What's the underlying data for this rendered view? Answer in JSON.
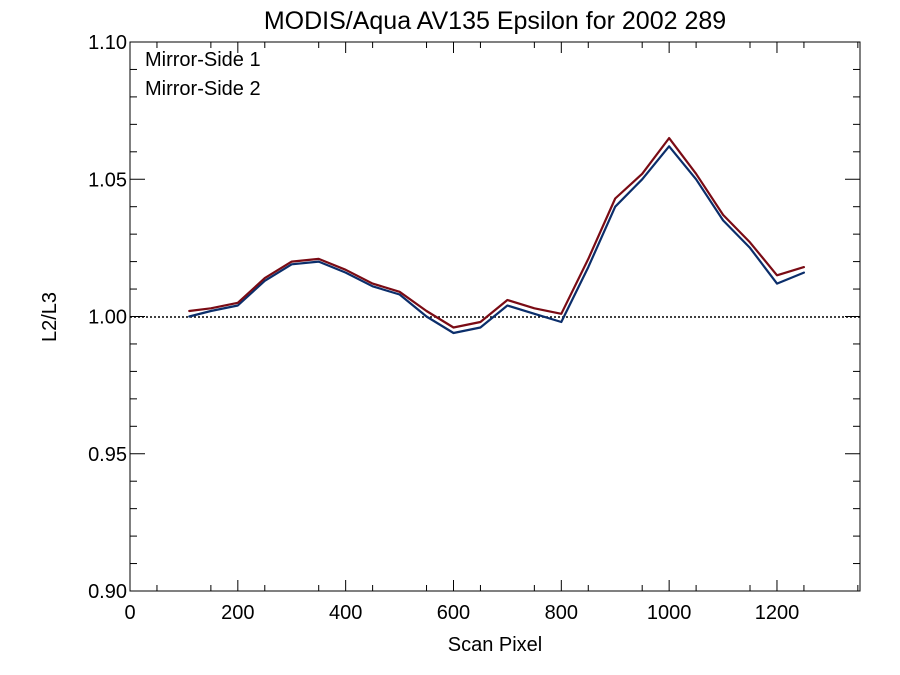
{
  "chart_data": {
    "type": "line",
    "title": "MODIS/Aqua AV135 Epsilon for 2002 289",
    "xlabel": "Scan Pixel",
    "ylabel": "L2/L3",
    "xlim": [
      0,
      1354
    ],
    "ylim": [
      0.9,
      1.1
    ],
    "x_ticks": [
      "0",
      "200",
      "400",
      "600",
      "800",
      "1000",
      "1200"
    ],
    "y_ticks": [
      "0.90",
      "0.95",
      "1.00",
      "1.05",
      "1.10"
    ],
    "reference_line": {
      "y": 1.0,
      "style": "dotted"
    },
    "legend_position": "top-left",
    "grid": false,
    "colors": {
      "mirror_side_1": "#0b2e6b",
      "mirror_side_2": "#7a0b14"
    },
    "series": [
      {
        "name": "Mirror-Side 1",
        "color": "#0b2e6b",
        "x": [
          110,
          150,
          200,
          250,
          300,
          350,
          400,
          450,
          500,
          550,
          600,
          650,
          700,
          750,
          800,
          850,
          900,
          950,
          1000,
          1050,
          1100,
          1150,
          1200,
          1250
        ],
        "values": [
          1.0,
          1.002,
          1.004,
          1.013,
          1.019,
          1.02,
          1.016,
          1.011,
          1.008,
          1.0,
          0.994,
          0.996,
          1.004,
          1.001,
          0.998,
          1.018,
          1.04,
          1.05,
          1.062,
          1.05,
          1.035,
          1.025,
          1.012,
          1.016
        ]
      },
      {
        "name": "Mirror-Side 2",
        "color": "#7a0b14",
        "x": [
          110,
          150,
          200,
          250,
          300,
          350,
          400,
          450,
          500,
          550,
          600,
          650,
          700,
          750,
          800,
          850,
          900,
          950,
          1000,
          1050,
          1100,
          1150,
          1200,
          1250
        ],
        "values": [
          1.002,
          1.003,
          1.005,
          1.014,
          1.02,
          1.021,
          1.017,
          1.012,
          1.009,
          1.002,
          0.996,
          0.998,
          1.006,
          1.003,
          1.001,
          1.021,
          1.043,
          1.052,
          1.065,
          1.052,
          1.037,
          1.027,
          1.015,
          1.018
        ]
      }
    ]
  }
}
